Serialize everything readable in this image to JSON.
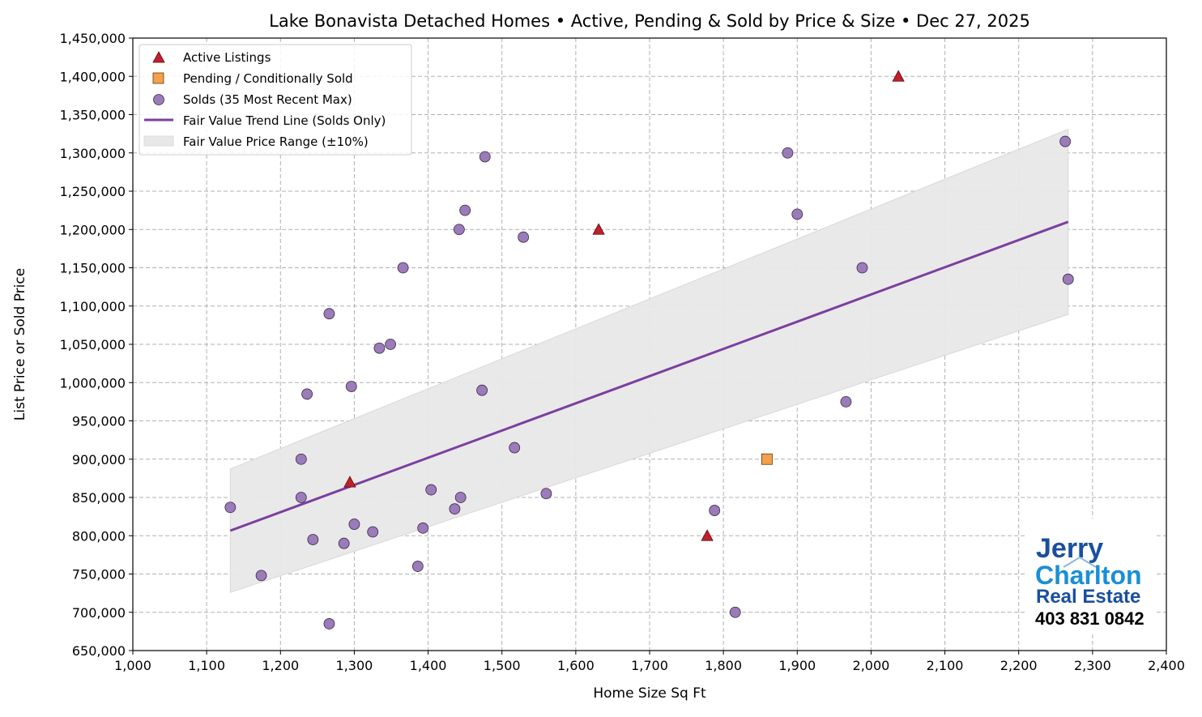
{
  "chart_data": {
    "type": "scatter",
    "title": "Lake Bonavista Detached Homes • Active, Pending & Sold by Price & Size • Dec 27, 2025",
    "xlabel": "Home Size Sq Ft",
    "ylabel": "List Price or Sold Price",
    "xlim": [
      1000,
      2400
    ],
    "ylim": [
      650000,
      1450000
    ],
    "grid": true,
    "legend_position": "top-left",
    "x_ticks": [
      1000,
      1100,
      1200,
      1300,
      1400,
      1500,
      1600,
      1700,
      1800,
      1900,
      2000,
      2100,
      2200,
      2300,
      2400
    ],
    "x_tick_labels": [
      "1,000",
      "1,100",
      "1,200",
      "1,300",
      "1,400",
      "1,500",
      "1,600",
      "1,700",
      "1,800",
      "1,900",
      "2,000",
      "2,100",
      "2,200",
      "2,300",
      "2,400"
    ],
    "y_ticks": [
      650000,
      700000,
      750000,
      800000,
      850000,
      900000,
      950000,
      1000000,
      1050000,
      1100000,
      1150000,
      1200000,
      1250000,
      1300000,
      1350000,
      1400000,
      1450000
    ],
    "y_tick_labels": [
      "650,000",
      "700,000",
      "750,000",
      "800,000",
      "850,000",
      "900,000",
      "950,000",
      "1,000,000",
      "1,050,000",
      "1,100,000",
      "1,150,000",
      "1,200,000",
      "1,250,000",
      "1,300,000",
      "1,350,000",
      "1,400,000",
      "1,450,000"
    ],
    "series": [
      {
        "name": "Active Listings",
        "marker": "triangle",
        "color": "#c0202a",
        "points": [
          [
            1294,
            870000
          ],
          [
            1631,
            1200000
          ],
          [
            1778,
            800000
          ],
          [
            2037,
            1400000
          ]
        ]
      },
      {
        "name": "Pending / Conditionally Sold",
        "marker": "square",
        "color": "#f5a04a",
        "points": [
          [
            1859,
            900000
          ]
        ]
      },
      {
        "name": "Solds (35 Most Recent Max)",
        "marker": "circle",
        "color": "#9b7bb8",
        "points": [
          [
            1132,
            837000
          ],
          [
            1174,
            748000
          ],
          [
            1228,
            900000
          ],
          [
            1228,
            850000
          ],
          [
            1236,
            985000
          ],
          [
            1244,
            795000
          ],
          [
            1266,
            1090000
          ],
          [
            1266,
            685000
          ],
          [
            1286,
            790000
          ],
          [
            1296,
            995000
          ],
          [
            1300,
            815000
          ],
          [
            1325,
            805000
          ],
          [
            1334,
            1045000
          ],
          [
            1349,
            1050000
          ],
          [
            1366,
            1150000
          ],
          [
            1386,
            760000
          ],
          [
            1393,
            810000
          ],
          [
            1404,
            860000
          ],
          [
            1436,
            835000
          ],
          [
            1442,
            1200000
          ],
          [
            1444,
            850000
          ],
          [
            1450,
            1225000
          ],
          [
            1473,
            990000
          ],
          [
            1477,
            1295000
          ],
          [
            1517,
            915000
          ],
          [
            1529,
            1190000
          ],
          [
            1560,
            855000
          ],
          [
            1788,
            833000
          ],
          [
            1816,
            700000
          ],
          [
            1887,
            1300000
          ],
          [
            1900,
            1220000
          ],
          [
            1966,
            975000
          ],
          [
            1988,
            1150000
          ],
          [
            2263,
            1315000
          ],
          [
            2267,
            1135000
          ]
        ]
      },
      {
        "name": "Fair Value Trend Line (Solds Only)",
        "marker": "line",
        "color": "#7b3f9e",
        "points": [
          [
            1132,
            806600
          ],
          [
            2267,
            1210000
          ]
        ]
      },
      {
        "name": "Fair Value Price Range (±10%)",
        "marker": "band",
        "color": "#e8e8e8",
        "band_pct": 10
      }
    ]
  },
  "logo": {
    "line1": "Jerry",
    "line2": "Charlton",
    "line3": "Real Estate",
    "phone": "403 831 0842"
  }
}
